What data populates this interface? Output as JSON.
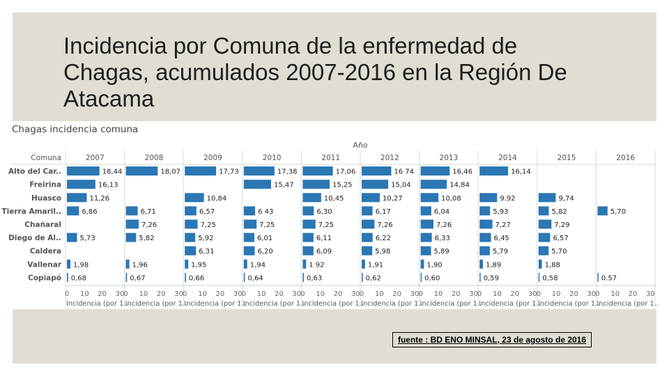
{
  "slide": {
    "title": "Incidencia por Comuna de la enfermedad de Chagas, acumulados 2007-2016 en la Región De Atacama",
    "source": "fuente : BD ENO MINSAL, 23 de agosto de 2016"
  },
  "colors": {
    "bar": "#2a77b4",
    "background": "#e1ddd4",
    "chart_bg": "#ffffff"
  },
  "chart_data": {
    "type": "bar",
    "title": "Chagas incidencia comuna",
    "column_group_label": "Año",
    "row_header": "Comuna",
    "xlim": [
      0,
      30
    ],
    "xticks": [
      "0",
      "10",
      "20",
      "30"
    ],
    "xlabel": "Incidencia (por 1..",
    "years": [
      "2007",
      "2008",
      "2009",
      "2010",
      "2011",
      "2012",
      "2013",
      "2014",
      "2015",
      "2016"
    ],
    "comunas": [
      "Alto del Car..",
      "Freirina",
      "Huasco",
      "Tierra Amaril..",
      "Chañaral",
      "Diego de Al..",
      "Caldera",
      "Vallenar",
      "Copiapó"
    ],
    "series": [
      {
        "name": "Alto del Car..",
        "values": [
          18.44,
          18.07,
          17.73,
          17.38,
          17.06,
          16.74,
          16.46,
          16.14,
          null,
          null
        ],
        "labels": [
          "18,44",
          "18,07",
          "17,73",
          "17,38",
          "17,06",
          "16 74",
          "16,46",
          "16,14",
          "",
          ""
        ]
      },
      {
        "name": "Freirina",
        "values": [
          16.13,
          null,
          null,
          15.47,
          15.25,
          15.04,
          14.84,
          null,
          null,
          null
        ],
        "labels": [
          "16,13",
          "",
          "",
          "15,47",
          "15,25",
          "15,04",
          "14,84",
          "",
          "",
          ""
        ]
      },
      {
        "name": "Huasco",
        "values": [
          11.26,
          null,
          10.84,
          null,
          10.45,
          10.27,
          10.08,
          9.92,
          9.74,
          null
        ],
        "labels": [
          "11,26",
          "",
          "10,84",
          "",
          "10,45",
          "10,27",
          "10,08",
          "9.92",
          "9,74",
          ""
        ]
      },
      {
        "name": "Tierra Amaril..",
        "values": [
          6.86,
          6.71,
          6.57,
          6.43,
          6.3,
          6.17,
          6.04,
          5.93,
          5.82,
          5.7
        ],
        "labels": [
          "6,86",
          "6,71",
          "6,57",
          "6 43",
          "6,30",
          "6,17",
          "6,04",
          "5,93",
          "5,82",
          "5,70"
        ]
      },
      {
        "name": "Chañaral",
        "values": [
          null,
          7.26,
          7.25,
          7.25,
          7.25,
          7.26,
          7.26,
          7.27,
          7.29,
          null
        ],
        "labels": [
          "",
          "7,26",
          "7,25",
          "7,25",
          "7,25",
          "7,26",
          "7,26",
          "7,27",
          "7,29",
          ""
        ]
      },
      {
        "name": "Diego de Al..",
        "values": [
          5.73,
          5.82,
          5.92,
          6.01,
          6.11,
          6.22,
          6.33,
          6.45,
          6.57,
          null
        ],
        "labels": [
          "5,73",
          "5,82",
          "5,92",
          "6,01",
          "6,11",
          "6,22",
          "6,33",
          "6,45",
          "6,57",
          ""
        ]
      },
      {
        "name": "Caldera",
        "values": [
          null,
          null,
          6.31,
          6.2,
          6.09,
          5.98,
          5.89,
          5.79,
          5.7,
          null
        ],
        "labels": [
          "",
          "",
          "6,31",
          "6,20",
          "6,09",
          "5,98",
          "5,89",
          "5,79",
          "5,70",
          ""
        ]
      },
      {
        "name": "Vallenar",
        "values": [
          1.98,
          1.96,
          1.95,
          1.94,
          1.92,
          1.91,
          1.9,
          1.89,
          1.88,
          null
        ],
        "labels": [
          "1,98",
          "1,96",
          "1,95",
          "1,94",
          "1 92",
          "1,91",
          "1,90",
          "1,89",
          "1,88",
          ""
        ]
      },
      {
        "name": "Copiapó",
        "values": [
          0.68,
          0.67,
          0.66,
          0.64,
          0.63,
          0.62,
          0.6,
          0.59,
          0.58,
          0.57
        ],
        "labels": [
          "0,68",
          "0,67",
          "0,66",
          "0,64",
          "0,63",
          "0,62",
          "0,60",
          "0,59",
          "0,58",
          "0.57"
        ]
      }
    ]
  }
}
